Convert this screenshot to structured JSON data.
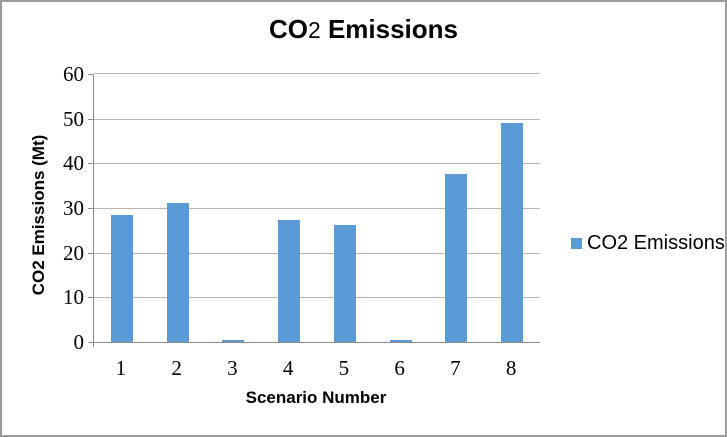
{
  "chart_data": {
    "type": "bar",
    "title": {
      "prefix": "CO",
      "subscript": "2",
      "suffix": " Emissions"
    },
    "categories": [
      "1",
      "2",
      "3",
      "4",
      "5",
      "6",
      "7",
      "8"
    ],
    "series": [
      {
        "name": "CO2 Emissions",
        "values": [
          28.4,
          31.1,
          0.5,
          27.4,
          26.2,
          0.5,
          37.7,
          49.0
        ]
      }
    ],
    "xlabel": "Scenario Number",
    "ylabel": "CO2 Emissions (Mt)",
    "ylim": [
      0,
      60
    ],
    "yticks": [
      0,
      10,
      20,
      30,
      40,
      50,
      60
    ],
    "grid": true,
    "legend": {
      "position": "right",
      "items": [
        {
          "label": "CO2 Emissions",
          "color": "#5b9bd5"
        }
      ]
    },
    "colors": {
      "bar": "#5b9bd5",
      "gridline": "#b5b5b5",
      "axis": "#8c8c8c",
      "frame_border": "#9b9b9b"
    }
  }
}
